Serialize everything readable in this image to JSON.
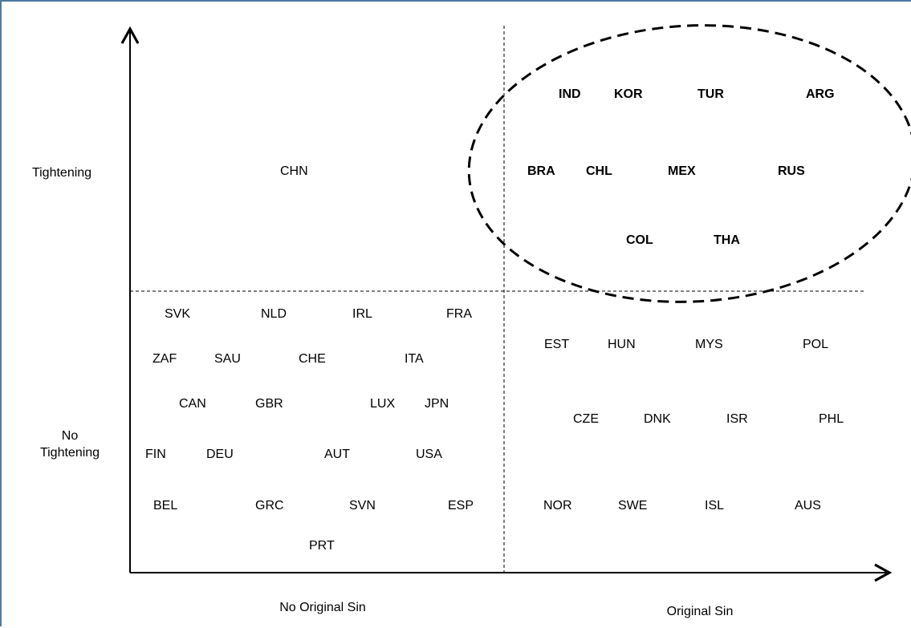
{
  "axes": {
    "y_top_label": "Tightening",
    "y_bottom_label_line1": "No",
    "y_bottom_label_line2": "Tightening",
    "x_left_label": "No Original Sin",
    "x_right_label": "Original Sin"
  },
  "quadrants": {
    "top_left": {
      "countries": [
        {
          "code": "CHN",
          "bold": false
        }
      ]
    },
    "top_right": {
      "highlighted": true,
      "countries": [
        {
          "code": "IND",
          "bold": true
        },
        {
          "code": "KOR",
          "bold": true
        },
        {
          "code": "TUR",
          "bold": true
        },
        {
          "code": "ARG",
          "bold": true
        },
        {
          "code": "BRA",
          "bold": true
        },
        {
          "code": "CHL",
          "bold": true
        },
        {
          "code": "MEX",
          "bold": true
        },
        {
          "code": "RUS",
          "bold": true
        },
        {
          "code": "COL",
          "bold": true
        },
        {
          "code": "THA",
          "bold": true
        }
      ]
    },
    "bottom_left": {
      "countries": [
        {
          "code": "SVK"
        },
        {
          "code": "NLD"
        },
        {
          "code": "IRL"
        },
        {
          "code": "FRA"
        },
        {
          "code": "ZAF"
        },
        {
          "code": "SAU"
        },
        {
          "code": "CHE"
        },
        {
          "code": "ITA"
        },
        {
          "code": "CAN"
        },
        {
          "code": "GBR"
        },
        {
          "code": "LUX"
        },
        {
          "code": "JPN"
        },
        {
          "code": "FIN"
        },
        {
          "code": "DEU"
        },
        {
          "code": "AUT"
        },
        {
          "code": "USA"
        },
        {
          "code": "BEL"
        },
        {
          "code": "GRC"
        },
        {
          "code": "SVN"
        },
        {
          "code": "ESP"
        },
        {
          "code": "PRT"
        }
      ]
    },
    "bottom_right": {
      "countries": [
        {
          "code": "EST"
        },
        {
          "code": "HUN"
        },
        {
          "code": "MYS"
        },
        {
          "code": "POL"
        },
        {
          "code": "CZE"
        },
        {
          "code": "DNK"
        },
        {
          "code": "ISR"
        },
        {
          "code": "PHL"
        },
        {
          "code": "NOR"
        },
        {
          "code": "SWE"
        },
        {
          "code": "ISL"
        },
        {
          "code": "AUS"
        }
      ]
    }
  }
}
